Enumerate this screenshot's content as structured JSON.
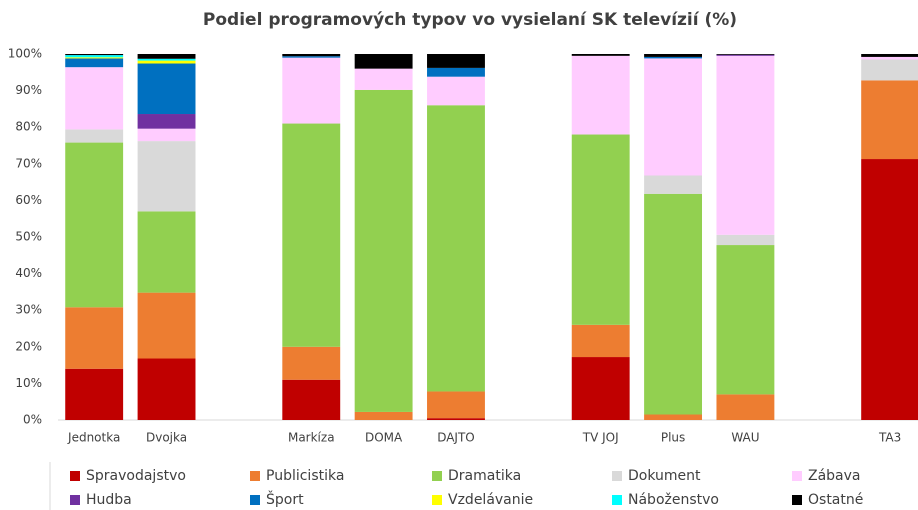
{
  "chart_data": {
    "type": "stacked_bar",
    "title": "Podiel programových typov vo vysielaní SK televízií (%)",
    "categories": [
      "Jednotka",
      "Dvojka",
      null,
      "Markíza",
      "DOMA",
      "DAJTO",
      null,
      "TV JOJ",
      "Plus",
      "WAU",
      null,
      "TA3"
    ],
    "ylim": [
      0,
      100
    ],
    "yticks": [
      {
        "value": 0,
        "label": "0%"
      },
      {
        "value": 10,
        "label": "10%"
      },
      {
        "value": 20,
        "label": "20%"
      },
      {
        "value": 30,
        "label": "30%"
      },
      {
        "value": 40,
        "label": "40%"
      },
      {
        "value": 50,
        "label": "50%"
      },
      {
        "value": 60,
        "label": "60%"
      },
      {
        "value": 70,
        "label": "70%"
      },
      {
        "value": 80,
        "label": "80%"
      },
      {
        "value": 90,
        "label": "90%"
      },
      {
        "value": 100,
        "label": "100%"
      }
    ],
    "grid": false,
    "legend": "bottom",
    "series": [
      {
        "name": "Spravodajstvo",
        "color": "#c00000",
        "values": [
          14,
          16.8,
          null,
          11,
          0,
          0.5,
          null,
          17.2,
          0,
          0,
          null,
          71.3
        ]
      },
      {
        "name": "Publicistika",
        "color": "#ed7d31",
        "values": [
          16.8,
          18,
          null,
          9,
          2.2,
          7.3,
          null,
          8.8,
          1.5,
          7,
          null,
          21.5
        ]
      },
      {
        "name": "Dramatika",
        "color": "#92d050",
        "values": [
          45,
          22.2,
          null,
          61,
          88,
          78.2,
          null,
          52,
          60.3,
          40.8,
          null,
          0
        ]
      },
      {
        "name": "Dokument",
        "color": "#d9d9d9",
        "values": [
          3.6,
          19.2,
          null,
          0,
          0,
          0,
          null,
          0,
          5,
          2.8,
          null,
          5.7
        ]
      },
      {
        "name": "Zábava",
        "color": "#ffccff",
        "values": [
          17,
          3.4,
          null,
          18,
          5.8,
          7.8,
          null,
          21.5,
          32,
          48.9,
          null,
          0.7
        ]
      },
      {
        "name": "Hudba",
        "color": "#7030a0",
        "values": [
          0,
          4,
          null,
          0,
          0,
          0,
          null,
          0,
          0,
          0.3,
          null,
          0
        ]
      },
      {
        "name": "Šport",
        "color": "#0070c0",
        "values": [
          2.4,
          13.8,
          null,
          0.4,
          0,
          2.4,
          null,
          0,
          0.4,
          0,
          null,
          0
        ]
      },
      {
        "name": "Vzdelávanie",
        "color": "#ffff00",
        "values": [
          0.3,
          0.8,
          null,
          0,
          0,
          0,
          null,
          0,
          0,
          0,
          null,
          0
        ]
      },
      {
        "name": "Náboženstvo",
        "color": "#00ffff",
        "values": [
          0.6,
          0.5,
          null,
          0,
          0,
          0,
          null,
          0,
          0,
          0,
          null,
          0
        ]
      },
      {
        "name": "Ostatné",
        "color": "#000000",
        "values": [
          0.3,
          1.3,
          null,
          0.6,
          4,
          3.8,
          null,
          0.5,
          0.8,
          0.2,
          null,
          0.8
        ]
      }
    ]
  }
}
